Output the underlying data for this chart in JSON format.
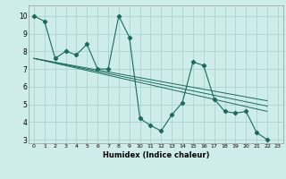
{
  "title": "",
  "xlabel": "Humidex (Indice chaleur)",
  "bg_color": "#ceecea",
  "grid_color": "#aad4d0",
  "line_color": "#1a6b5a",
  "xlim": [
    -0.5,
    23.5
  ],
  "ylim": [
    2.8,
    10.6
  ],
  "yticks": [
    3,
    4,
    5,
    6,
    7,
    8,
    9,
    10
  ],
  "xticks": [
    0,
    1,
    2,
    3,
    4,
    5,
    6,
    7,
    8,
    9,
    10,
    11,
    12,
    13,
    14,
    15,
    16,
    17,
    18,
    19,
    20,
    21,
    22,
    23
  ],
  "main_series": {
    "x": [
      0,
      1,
      2,
      3,
      4,
      5,
      6,
      7,
      8,
      9,
      10,
      11,
      12,
      13,
      14,
      15,
      16,
      17,
      18,
      19,
      20,
      21,
      22
    ],
    "y": [
      10.0,
      9.7,
      7.6,
      8.0,
      7.8,
      8.4,
      7.0,
      7.0,
      10.0,
      8.8,
      4.2,
      3.8,
      3.5,
      4.4,
      5.1,
      7.4,
      7.2,
      5.3,
      4.6,
      4.5,
      4.6,
      3.4,
      3.0
    ]
  },
  "trend_lines": [
    {
      "x": [
        0,
        22
      ],
      "y": [
        7.6,
        4.6
      ]
    },
    {
      "x": [
        0,
        22
      ],
      "y": [
        7.6,
        4.9
      ]
    },
    {
      "x": [
        0,
        22
      ],
      "y": [
        7.6,
        5.2
      ]
    }
  ]
}
